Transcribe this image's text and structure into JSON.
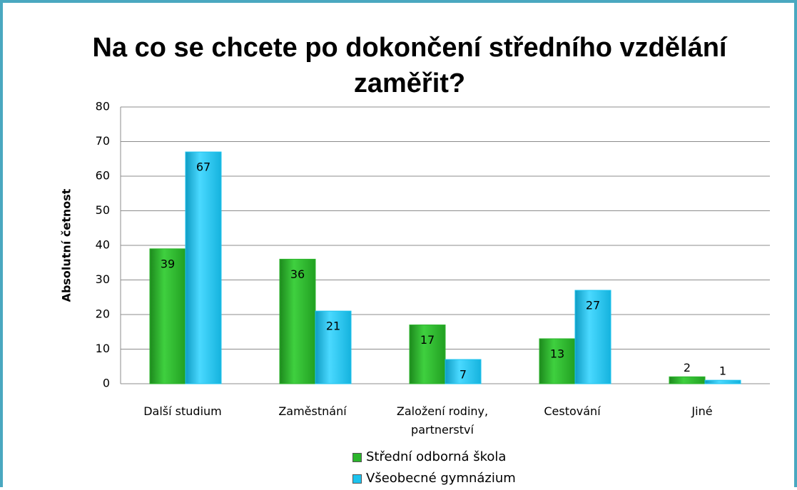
{
  "chart_data": {
    "type": "bar",
    "title": "Na co se chcete po dokončení středního vzdělání zaměřit?",
    "y_label": "Absolutní četnost",
    "categories": [
      "Další studium",
      "Zaměstnání",
      "Založení rodiny, partnerství",
      "Cestování",
      "Jiné"
    ],
    "series": [
      {
        "name": "Střední odborná škola",
        "color": "#2bb52b",
        "values": [
          39,
          36,
          17,
          13,
          2
        ]
      },
      {
        "name": "Všeobecné gymnázium",
        "color": "#1cc3ee",
        "values": [
          67,
          21,
          7,
          27,
          1
        ]
      }
    ],
    "ylim": [
      0,
      80
    ],
    "yticks": [
      0,
      10,
      20,
      30,
      40,
      50,
      60,
      70,
      80
    ],
    "grid": true,
    "legend": "bottom"
  }
}
